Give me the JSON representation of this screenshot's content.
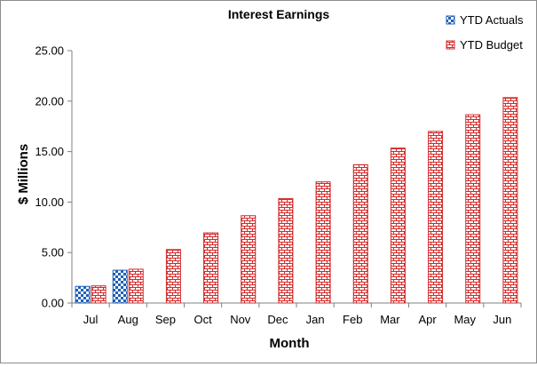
{
  "chart_data": {
    "type": "bar",
    "title": "Interest Earnings",
    "xlabel": "Month",
    "ylabel": "$ Millions",
    "categories": [
      "Jul",
      "Aug",
      "Sep",
      "Oct",
      "Nov",
      "Dec",
      "Jan",
      "Feb",
      "Mar",
      "Apr",
      "May",
      "Jun"
    ],
    "ylim": [
      0,
      25
    ],
    "yticks": [
      "0.00",
      "5.00",
      "10.00",
      "15.00",
      "20.00",
      "25.00"
    ],
    "grid": false,
    "legend_position": "top-right",
    "series": [
      {
        "name": "YTD Actuals",
        "color": "#1f5fb4",
        "pattern": "checker",
        "values": [
          1.65,
          3.25,
          null,
          null,
          null,
          null,
          null,
          null,
          null,
          null,
          null,
          null
        ]
      },
      {
        "name": "YTD Budget",
        "color": "#d42a2a",
        "pattern": "brick",
        "values": [
          1.7,
          3.35,
          5.3,
          6.95,
          8.65,
          10.35,
          12.0,
          13.7,
          15.35,
          17.0,
          18.65,
          20.35
        ]
      }
    ]
  }
}
